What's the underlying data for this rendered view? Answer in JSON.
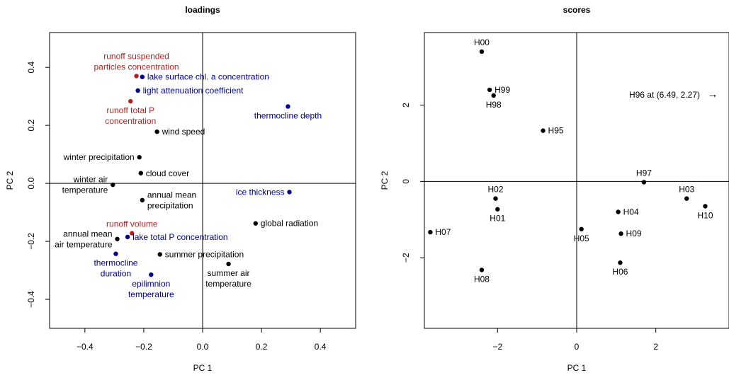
{
  "colors": {
    "black": "#000000",
    "red": "#b22222",
    "blue": "#00008b"
  },
  "chart_data": [
    {
      "type": "scatter",
      "title": "loadings",
      "xlabel": "PC 1",
      "ylabel": "PC 2",
      "xlim": [
        -0.52,
        0.52
      ],
      "ylim": [
        -0.5,
        0.52
      ],
      "xticks": [
        -0.4,
        -0.2,
        0.0,
        0.2,
        0.4
      ],
      "xtick_labels": [
        "−0.4",
        "−0.2",
        "0.0",
        "0.2",
        "0.4"
      ],
      "yticks": [
        -0.4,
        -0.2,
        0.0,
        0.2,
        0.4
      ],
      "ytick_labels": [
        "−0.4",
        "−0.2",
        "0.0",
        "0.2",
        "0.4"
      ],
      "grid": false,
      "reference_lines": {
        "x": 0,
        "y": 0
      },
      "points": [
        {
          "x": -0.225,
          "y": 0.37,
          "color": "red",
          "lines": [
            "runoff suspended",
            "particles concentration"
          ],
          "label_pos": "above"
        },
        {
          "x": -0.205,
          "y": 0.367,
          "color": "blue",
          "lines": [
            "lake surface chl. a concentration"
          ],
          "label_pos": "right"
        },
        {
          "x": -0.22,
          "y": 0.32,
          "color": "blue",
          "lines": [
            "light attenuation coefficient"
          ],
          "label_pos": "right"
        },
        {
          "x": -0.245,
          "y": 0.283,
          "color": "red",
          "lines": [
            "runoff total P",
            "concentration"
          ],
          "label_pos": "below"
        },
        {
          "x": 0.29,
          "y": 0.265,
          "color": "blue",
          "lines": [
            "thermocline depth"
          ],
          "label_pos": "below"
        },
        {
          "x": -0.155,
          "y": 0.178,
          "color": "black",
          "lines": [
            "wind speed"
          ],
          "label_pos": "right"
        },
        {
          "x": -0.215,
          "y": 0.09,
          "color": "black",
          "lines": [
            "winter precipitation"
          ],
          "label_pos": "left"
        },
        {
          "x": -0.21,
          "y": 0.035,
          "color": "black",
          "lines": [
            "cloud cover"
          ],
          "label_pos": "right"
        },
        {
          "x": -0.305,
          "y": -0.005,
          "color": "black",
          "lines": [
            "winter air",
            "temperature"
          ],
          "label_pos": "left"
        },
        {
          "x": 0.295,
          "y": -0.03,
          "color": "blue",
          "lines": [
            "ice thickness"
          ],
          "label_pos": "left"
        },
        {
          "x": -0.205,
          "y": -0.058,
          "color": "black",
          "lines": [
            "annual mean",
            "precipitation"
          ],
          "label_pos": "right"
        },
        {
          "x": 0.18,
          "y": -0.138,
          "color": "black",
          "lines": [
            "global radiation"
          ],
          "label_pos": "right"
        },
        {
          "x": -0.24,
          "y": -0.172,
          "color": "red",
          "lines": [
            "runoff volume"
          ],
          "label_pos": "above"
        },
        {
          "x": -0.255,
          "y": -0.185,
          "color": "blue",
          "lines": [
            "lake total P concentration"
          ],
          "label_pos": "right"
        },
        {
          "x": -0.29,
          "y": -0.192,
          "color": "black",
          "lines": [
            "annual mean",
            "air temperature"
          ],
          "label_pos": "left"
        },
        {
          "x": -0.295,
          "y": -0.243,
          "color": "blue",
          "lines": [
            "thermocline",
            "duration"
          ],
          "label_pos": "below"
        },
        {
          "x": -0.145,
          "y": -0.245,
          "color": "black",
          "lines": [
            "summer precipitation"
          ],
          "label_pos": "right"
        },
        {
          "x": 0.088,
          "y": -0.278,
          "color": "black",
          "lines": [
            "summer air",
            "temperature"
          ],
          "label_pos": "below"
        },
        {
          "x": -0.175,
          "y": -0.315,
          "color": "blue",
          "lines": [
            "epilimnion",
            "temperature"
          ],
          "label_pos": "below"
        }
      ]
    },
    {
      "type": "scatter",
      "title": "scores",
      "xlabel": "PC 1",
      "ylabel": "PC 2",
      "xlim": [
        -3.85,
        3.85
      ],
      "ylim": [
        -3.85,
        3.9
      ],
      "xticks": [
        -2,
        0,
        2
      ],
      "xtick_labels": [
        "−2",
        "0",
        "2"
      ],
      "yticks": [
        -2,
        0,
        2
      ],
      "ytick_labels": [
        "−2",
        "0",
        "2"
      ],
      "grid": false,
      "reference_lines": {
        "x": 0,
        "y": 0
      },
      "points": [
        {
          "x": -2.4,
          "y": 3.4,
          "label": "H00",
          "label_pos": "above"
        },
        {
          "x": -2.2,
          "y": 2.4,
          "label": "H99",
          "label_pos": "right"
        },
        {
          "x": -2.1,
          "y": 2.25,
          "label": "H98",
          "label_pos": "below"
        },
        {
          "x": -0.85,
          "y": 1.33,
          "label": "H95",
          "label_pos": "right"
        },
        {
          "x": 1.7,
          "y": -0.02,
          "label": "H97",
          "label_pos": "above"
        },
        {
          "x": 2.78,
          "y": -0.45,
          "label": "H03",
          "label_pos": "above"
        },
        {
          "x": 3.25,
          "y": -0.65,
          "label": "H10",
          "label_pos": "below"
        },
        {
          "x": -2.05,
          "y": -0.45,
          "label": "H02",
          "label_pos": "above"
        },
        {
          "x": -2.0,
          "y": -0.73,
          "label": "H01",
          "label_pos": "below"
        },
        {
          "x": 1.05,
          "y": -0.8,
          "label": "H04",
          "label_pos": "right"
        },
        {
          "x": 0.12,
          "y": -1.25,
          "label": "H05",
          "label_pos": "below"
        },
        {
          "x": 1.12,
          "y": -1.37,
          "label": "H09",
          "label_pos": "right"
        },
        {
          "x": -3.7,
          "y": -1.33,
          "label": "H07",
          "label_pos": "right"
        },
        {
          "x": 1.1,
          "y": -2.13,
          "label": "H06",
          "label_pos": "below"
        },
        {
          "x": -2.4,
          "y": -2.32,
          "label": "H08",
          "label_pos": "below"
        }
      ],
      "offscale_annotation": {
        "text": "H96 at (6.49, 2.27)",
        "y": 2.27,
        "arrow": "→"
      }
    }
  ]
}
